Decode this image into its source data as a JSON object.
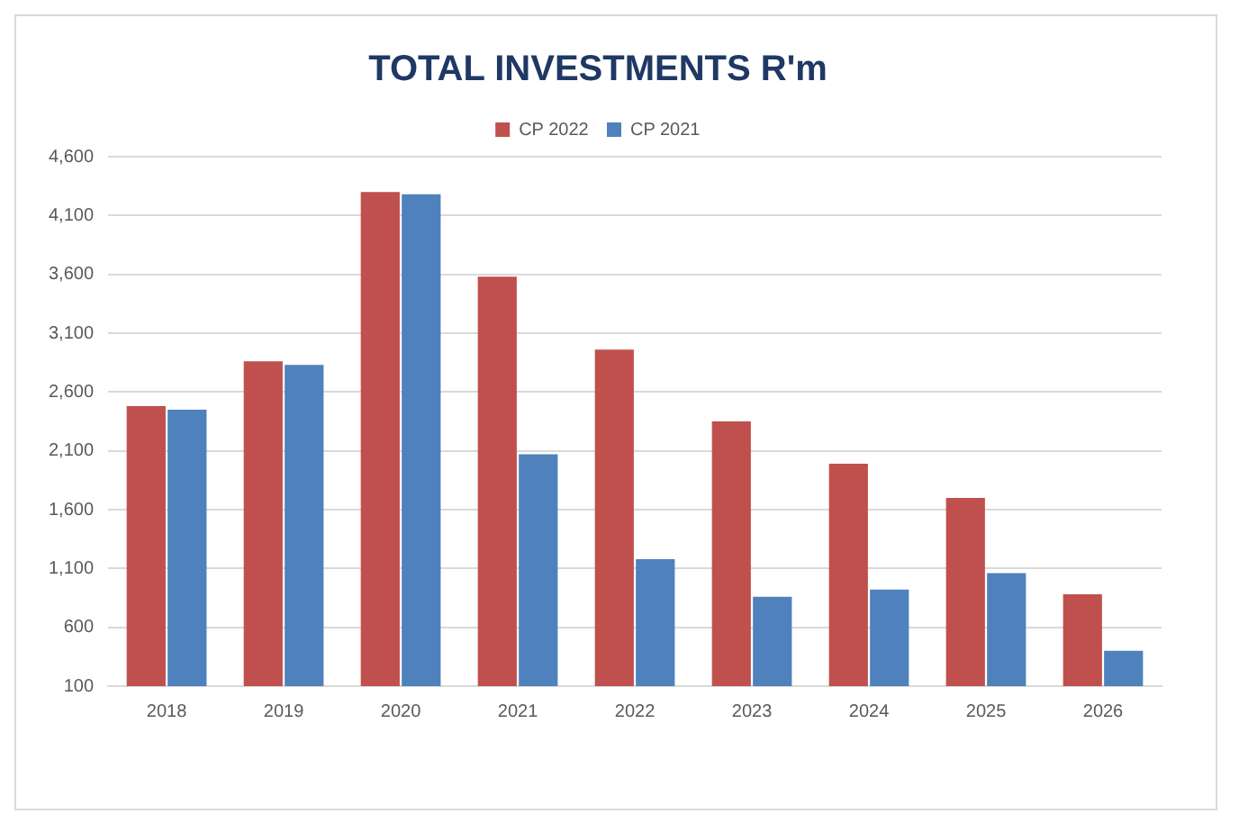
{
  "chart_data": {
    "type": "bar",
    "title": "TOTAL INVESTMENTS R'm",
    "categories": [
      "2018",
      "2019",
      "2020",
      "2021",
      "2022",
      "2023",
      "2024",
      "2025",
      "2026"
    ],
    "series": [
      {
        "name": "CP 2022",
        "color": "#c0504d",
        "values": [
          2480,
          2860,
          4300,
          3580,
          2960,
          2350,
          1990,
          1700,
          880
        ]
      },
      {
        "name": "CP 2021",
        "color": "#4f81bd",
        "values": [
          2450,
          2830,
          4280,
          2070,
          1180,
          860,
          920,
          1060,
          400
        ]
      }
    ],
    "ylim": [
      100,
      4600
    ],
    "yticks": [
      {
        "value": 100,
        "label": "100"
      },
      {
        "value": 600,
        "label": "600"
      },
      {
        "value": 1100,
        "label": "1,100"
      },
      {
        "value": 1600,
        "label": "1,600"
      },
      {
        "value": 2100,
        "label": "2,100"
      },
      {
        "value": 2600,
        "label": "2,600"
      },
      {
        "value": 3100,
        "label": "3,100"
      },
      {
        "value": 3600,
        "label": "3,600"
      },
      {
        "value": 4100,
        "label": "4,100"
      },
      {
        "value": 4600,
        "label": "4,600"
      }
    ],
    "grid": "y",
    "legend": "top"
  }
}
